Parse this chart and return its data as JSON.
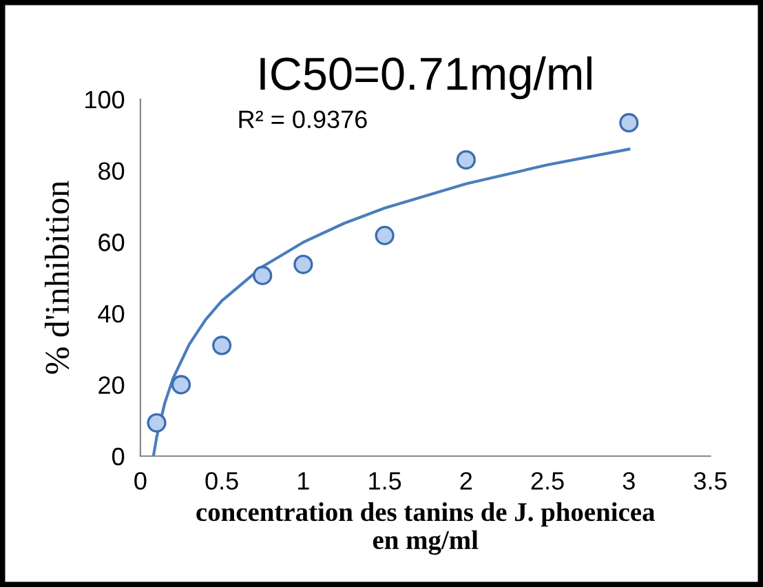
{
  "chart_data": {
    "type": "scatter",
    "title": "IC50=0.71mg/ml",
    "xlabel": "concentration des tanins de J. phoenicea\nen mg/ml",
    "ylabel": "% d'inhibition",
    "annotations": [
      "R² = 0.9376"
    ],
    "series": [
      {
        "marker": "circle",
        "color": "#b8cff0",
        "x": [
          0.1,
          0.25,
          0.5,
          0.75,
          1,
          1.5,
          2,
          3
        ],
        "values": [
          9.3,
          20,
          31,
          50.6,
          53.7,
          61.8,
          83,
          93.4
        ]
      },
      {
        "type": "line",
        "marker": "none",
        "color": "#4a7ebb",
        "x": [
          0.08,
          0.1,
          0.15,
          0.2,
          0.3,
          0.4,
          0.5,
          0.75,
          1,
          1.25,
          1.5,
          2,
          2.5,
          3
        ],
        "values": [
          0,
          5.3,
          14.9,
          21.7,
          31.3,
          38.2,
          43.5,
          53.1,
          59.9,
          65.2,
          69.5,
          76.3,
          81.6,
          86
        ]
      }
    ],
    "line_style": "solid",
    "xlim": [
      0,
      3.5
    ],
    "xticks": [
      0,
      0.5,
      1,
      1.5,
      2,
      2.5,
      3,
      3.5
    ],
    "ylim": [
      0,
      100
    ],
    "yticks": [
      0,
      20,
      40,
      60,
      80,
      100
    ],
    "grid": false,
    "legend": false
  }
}
